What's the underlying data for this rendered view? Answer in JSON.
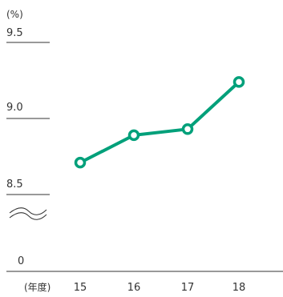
{
  "chart_data": {
    "type": "line",
    "unit_label": "(%)",
    "x_unit_label": "(年度)",
    "categories": [
      "15",
      "16",
      "17",
      "18"
    ],
    "series": [
      {
        "values": [
          8.71,
          8.89,
          8.93,
          9.24
        ]
      }
    ],
    "y_ticks": [
      "9.5",
      "9.0",
      "8.5",
      "0"
    ],
    "y_break": true,
    "ylim": [
      8.5,
      9.5
    ],
    "grid": false,
    "colors": {
      "line": "#00a07a",
      "marker_fill": "#ffffff",
      "axis": "#333333"
    }
  }
}
